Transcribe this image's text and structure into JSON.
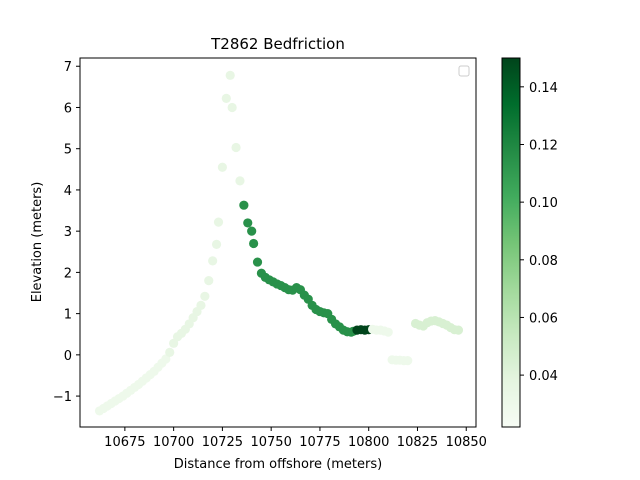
{
  "chart_data": {
    "type": "scatter",
    "title": "T2862 Bedfriction",
    "xlabel": "Distance from offshore (meters)",
    "ylabel": "Elevation (meters)",
    "xlim": [
      10652,
      10855
    ],
    "ylim": [
      -1.75,
      7.2
    ],
    "xticks": [
      10675,
      10700,
      10725,
      10750,
      10775,
      10800,
      10825,
      10850
    ],
    "yticks": [
      -1,
      0,
      1,
      2,
      3,
      4,
      5,
      6,
      7
    ],
    "grid": false,
    "legend": "top-right (empty)",
    "colormap": "Greens",
    "colorbar": {
      "range": [
        0.022,
        0.15
      ],
      "ticks": [
        0.04,
        0.06,
        0.08,
        0.1,
        0.12,
        0.14
      ],
      "tick_labels": [
        "0.04",
        "0.06",
        "0.08",
        "0.10",
        "0.12",
        "0.14"
      ]
    },
    "points": [
      [
        10662,
        -1.36,
        0.03
      ],
      [
        10664,
        -1.3,
        0.03
      ],
      [
        10666,
        -1.24,
        0.03
      ],
      [
        10668,
        -1.18,
        0.03
      ],
      [
        10670,
        -1.12,
        0.03
      ],
      [
        10672,
        -1.06,
        0.03
      ],
      [
        10674,
        -1.0,
        0.03
      ],
      [
        10676,
        -0.93,
        0.03
      ],
      [
        10678,
        -0.86,
        0.03
      ],
      [
        10680,
        -0.79,
        0.03
      ],
      [
        10682,
        -0.72,
        0.03
      ],
      [
        10684,
        -0.64,
        0.03
      ],
      [
        10686,
        -0.56,
        0.03
      ],
      [
        10688,
        -0.48,
        0.03
      ],
      [
        10690,
        -0.4,
        0.03
      ],
      [
        10692,
        -0.3,
        0.03
      ],
      [
        10694,
        -0.2,
        0.03
      ],
      [
        10696,
        -0.1,
        0.03
      ],
      [
        10698,
        0.06,
        0.035
      ],
      [
        10700,
        0.28,
        0.035
      ],
      [
        10702,
        0.44,
        0.035
      ],
      [
        10704,
        0.52,
        0.035
      ],
      [
        10706,
        0.62,
        0.035
      ],
      [
        10708,
        0.75,
        0.035
      ],
      [
        10710,
        0.9,
        0.035
      ],
      [
        10712,
        1.05,
        0.035
      ],
      [
        10714,
        1.2,
        0.035
      ],
      [
        10716,
        1.42,
        0.035
      ],
      [
        10718,
        1.8,
        0.035
      ],
      [
        10720,
        2.28,
        0.035
      ],
      [
        10722,
        2.68,
        0.035
      ],
      [
        10723,
        3.22,
        0.035
      ],
      [
        10725,
        4.55,
        0.035
      ],
      [
        10727,
        6.22,
        0.035
      ],
      [
        10729,
        6.78,
        0.035
      ],
      [
        10730,
        6.0,
        0.035
      ],
      [
        10732,
        5.03,
        0.035
      ],
      [
        10734,
        4.22,
        0.035
      ],
      [
        10736,
        3.63,
        0.115
      ],
      [
        10738,
        3.2,
        0.115
      ],
      [
        10740,
        3.0,
        0.115
      ],
      [
        10741,
        2.7,
        0.115
      ],
      [
        10743,
        2.25,
        0.115
      ],
      [
        10745,
        1.98,
        0.115
      ],
      [
        10747,
        1.88,
        0.115
      ],
      [
        10749,
        1.82,
        0.115
      ],
      [
        10751,
        1.77,
        0.115
      ],
      [
        10753,
        1.72,
        0.115
      ],
      [
        10755,
        1.68,
        0.115
      ],
      [
        10757,
        1.63,
        0.115
      ],
      [
        10759,
        1.58,
        0.115
      ],
      [
        10761,
        1.57,
        0.115
      ],
      [
        10763,
        1.63,
        0.115
      ],
      [
        10765,
        1.58,
        0.115
      ],
      [
        10767,
        1.45,
        0.115
      ],
      [
        10769,
        1.35,
        0.115
      ],
      [
        10771,
        1.2,
        0.115
      ],
      [
        10773,
        1.1,
        0.115
      ],
      [
        10775,
        1.05,
        0.115
      ],
      [
        10777,
        1.02,
        0.115
      ],
      [
        10779,
        1.0,
        0.115
      ],
      [
        10781,
        0.86,
        0.115
      ],
      [
        10783,
        0.75,
        0.115
      ],
      [
        10785,
        0.68,
        0.115
      ],
      [
        10787,
        0.6,
        0.115
      ],
      [
        10789,
        0.56,
        0.115
      ],
      [
        10791,
        0.55,
        0.115
      ],
      [
        10792,
        0.57,
        0.115
      ],
      [
        10794,
        0.6,
        0.15
      ],
      [
        10796,
        0.61,
        0.15
      ],
      [
        10798,
        0.6,
        0.15
      ],
      [
        10800,
        0.61,
        0.15
      ],
      [
        10802,
        0.62,
        0.03
      ],
      [
        10804,
        0.6,
        0.03
      ],
      [
        10806,
        0.6,
        0.03
      ],
      [
        10808,
        0.58,
        0.03
      ],
      [
        10810,
        0.55,
        0.03
      ],
      [
        10812,
        -0.12,
        0.03
      ],
      [
        10814,
        -0.13,
        0.03
      ],
      [
        10816,
        -0.13,
        0.03
      ],
      [
        10818,
        -0.14,
        0.03
      ],
      [
        10820,
        -0.14,
        0.03
      ],
      [
        10824,
        0.76,
        0.045
      ],
      [
        10826,
        0.72,
        0.045
      ],
      [
        10828,
        0.7,
        0.045
      ],
      [
        10830,
        0.78,
        0.045
      ],
      [
        10832,
        0.82,
        0.045
      ],
      [
        10834,
        0.83,
        0.045
      ],
      [
        10836,
        0.8,
        0.045
      ],
      [
        10838,
        0.76,
        0.045
      ],
      [
        10840,
        0.72,
        0.045
      ],
      [
        10842,
        0.66,
        0.045
      ],
      [
        10844,
        0.61,
        0.045
      ],
      [
        10846,
        0.6,
        0.045
      ]
    ]
  }
}
